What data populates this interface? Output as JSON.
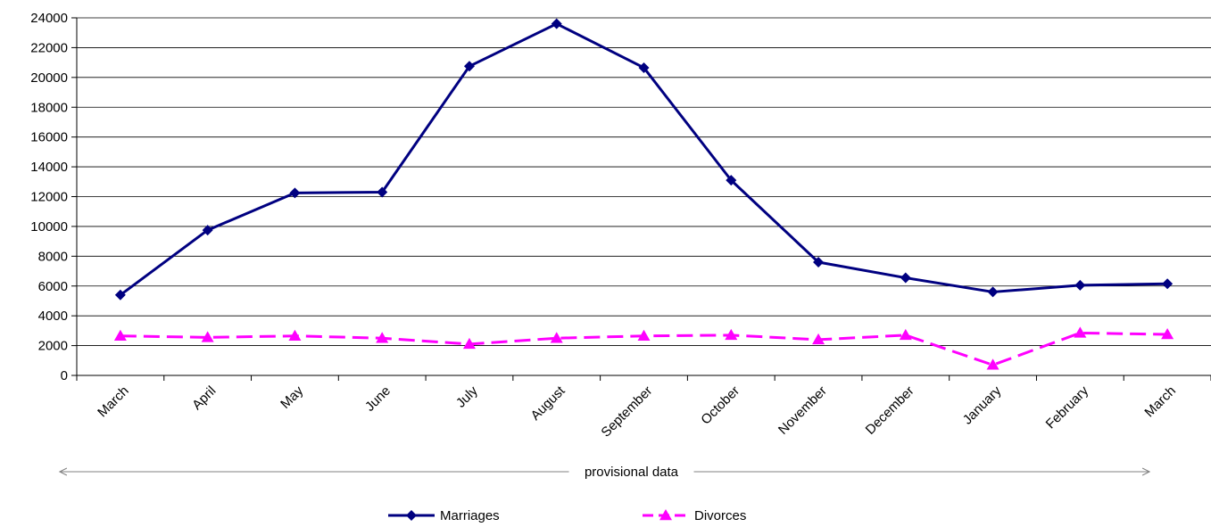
{
  "chart_data": {
    "type": "line",
    "title": "",
    "xlabel": "",
    "ylabel": "",
    "ylim": [
      0,
      24000
    ],
    "y_ticks": [
      0,
      2000,
      4000,
      6000,
      8000,
      10000,
      12000,
      14000,
      16000,
      18000,
      20000,
      22000,
      24000
    ],
    "grid": true,
    "legend_position": "bottom",
    "categories": [
      "March",
      "April",
      "May",
      "June",
      "July",
      "August",
      "September",
      "October",
      "November",
      "December",
      "January",
      "February",
      "March"
    ],
    "series": [
      {
        "name": "Marriages",
        "color": "#000080",
        "marker": "diamond",
        "line_style": "solid",
        "values": [
          5400,
          9750,
          12250,
          12300,
          20750,
          23600,
          20650,
          13100,
          7600,
          6550,
          5600,
          6050,
          6150
        ]
      },
      {
        "name": "Divorces",
        "color": "#FF00FF",
        "marker": "triangle",
        "line_style": "dashed",
        "values": [
          2650,
          2550,
          2650,
          2500,
          2100,
          2500,
          2650,
          2700,
          2400,
          2700,
          700,
          2850,
          2750
        ]
      }
    ],
    "annotations": [
      {
        "text": "provisional data",
        "type": "range-arrow",
        "from_category_index": 0,
        "to_category_index": 12
      }
    ]
  }
}
